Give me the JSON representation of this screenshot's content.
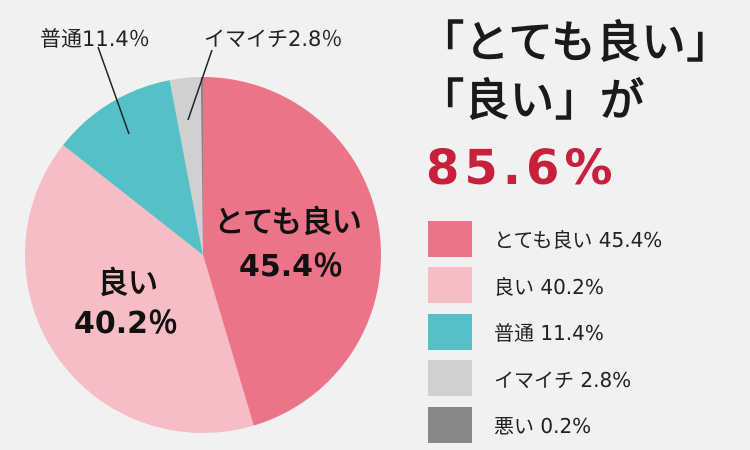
{
  "headline": {
    "line1": "「とても良い」",
    "line2": "「良い」が",
    "highlight": "85.6%"
  },
  "chart_data": {
    "type": "pie",
    "categories": [
      "とても良い",
      "良い",
      "普通",
      "イマイチ",
      "悪い"
    ],
    "values": [
      45.4,
      40.2,
      11.4,
      2.8,
      0.2
    ],
    "colors": [
      "#ec7489",
      "#f6bec4",
      "#55c0c6",
      "#d0d0d0",
      "#878787"
    ],
    "slice_labels": [
      {
        "name": "とても良い",
        "value": "45.4％"
      },
      {
        "name": "良い",
        "value": "40.2％"
      }
    ],
    "callouts": [
      "普通11.4％",
      "イマイチ2.8％"
    ]
  },
  "legend": [
    {
      "label": "とても良い 45.4%",
      "color": "#ec7489"
    },
    {
      "label": "良い 40.2%",
      "color": "#f6bec4"
    },
    {
      "label": "普通 11.4%",
      "color": "#55c0c6"
    },
    {
      "label": "イマイチ 2.8%",
      "color": "#d0d0d0"
    },
    {
      "label": "悪い 0.2%",
      "color": "#878787"
    }
  ]
}
